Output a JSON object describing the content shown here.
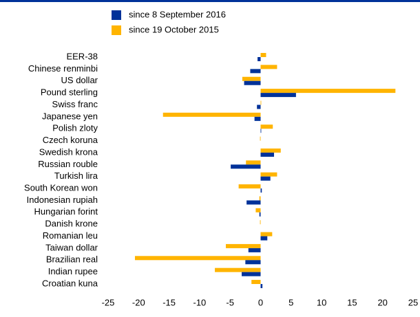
{
  "chart_data": {
    "type": "bar",
    "orientation": "horizontal",
    "categories": [
      "EER-38",
      "Chinese renminbi",
      "US dollar",
      "Pound sterling",
      "Swiss franc",
      "Japanese yen",
      "Polish zloty",
      "Czech koruna",
      "Swedish krona",
      "Russian rouble",
      "Turkish lira",
      "South Korean won",
      "Indonesian rupiah",
      "Hungarian forint",
      "Danish krone",
      "Romanian leu",
      "Taiwan dollar",
      "Brazilian real",
      "Indian rupee",
      "Croatian kuna"
    ],
    "series": [
      {
        "name": "since 8 September 2016",
        "color": "#003299",
        "values": [
          -0.5,
          -1.7,
          -2.7,
          5.8,
          -0.6,
          -1.0,
          0.1,
          0,
          2.2,
          -4.9,
          1.6,
          0.2,
          -2.3,
          -0.2,
          0,
          1.1,
          -2.0,
          -2.5,
          -3.1,
          0.3
        ]
      },
      {
        "name": "since 19 October 2015",
        "color": "#ffb400",
        "values": [
          0.9,
          2.7,
          -3.0,
          22.1,
          0.1,
          -16.0,
          2.0,
          -0.1,
          3.3,
          -2.4,
          2.7,
          -3.6,
          -0.2,
          -0.8,
          -0.1,
          1.9,
          -5.7,
          -20.6,
          -7.5,
          -1.5
        ]
      }
    ],
    "xlim": [
      -25,
      25
    ],
    "xticks": [
      -25,
      -20,
      -15,
      -10,
      -5,
      0,
      5,
      10,
      15,
      20,
      25
    ],
    "legend": "top"
  }
}
